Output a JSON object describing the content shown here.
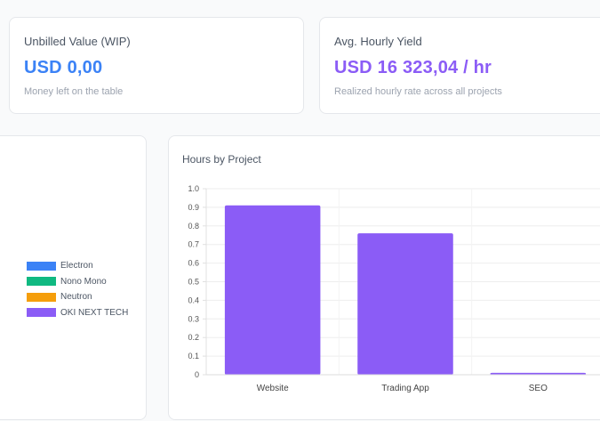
{
  "kpis": {
    "wip": {
      "label": "Unbilled Value (WIP)",
      "value": "USD 0,00",
      "subtitle": "Money left on the table",
      "color": "#3b82f6"
    },
    "yield": {
      "label": "Avg. Hourly Yield",
      "value": "USD 16 323,04 / hr",
      "subtitle": "Realized hourly rate across all projects",
      "color": "#8b5cf6"
    }
  },
  "legend": {
    "items": [
      {
        "label": "Electron",
        "color": "#3b82f6"
      },
      {
        "label": "Nono Mono",
        "color": "#10b981"
      },
      {
        "label": "Neutron",
        "color": "#f59e0b"
      },
      {
        "label": "OKI NEXT TECH",
        "color": "#8b5cf6"
      }
    ]
  },
  "hours_chart": {
    "title": "Hours by Project"
  },
  "chart_data": {
    "type": "bar",
    "title": "Hours by Project",
    "categories": [
      "Website",
      "Trading App",
      "SEO"
    ],
    "values": [
      0.91,
      0.76,
      0.01
    ],
    "ylim": [
      0,
      1.0
    ],
    "yticks": [
      "0",
      "0.1",
      "0.2",
      "0.3",
      "0.4",
      "0.5",
      "0.6",
      "0.7",
      "0.8",
      "0.9",
      "1.0"
    ],
    "bar_color": "#8b5cf6",
    "grid": true,
    "xlabel": "",
    "ylabel": ""
  }
}
